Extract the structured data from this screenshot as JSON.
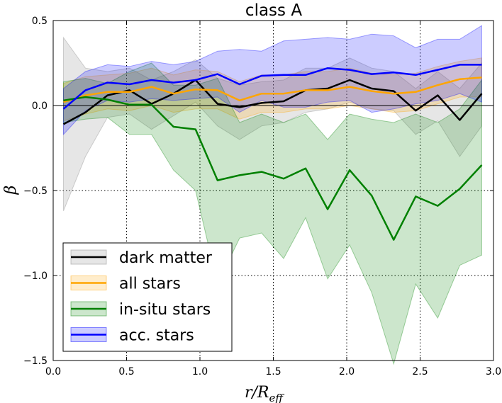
{
  "chart_data": {
    "type": "line",
    "title": "class A",
    "xlabel_main": "r/R",
    "xlabel_sub": "eff",
    "ylabel": "β",
    "xlim": [
      0.0,
      3.0
    ],
    "ylim": [
      -1.5,
      0.5
    ],
    "grid": true,
    "legend_position": "lower-left",
    "x_ticks": [
      0.0,
      0.5,
      1.0,
      1.5,
      2.0,
      2.5,
      3.0
    ],
    "x_tick_labels": [
      "0.0",
      "0.5",
      "1.0",
      "1.5",
      "2.0",
      "2.5",
      "3.0"
    ],
    "y_ticks": [
      0.5,
      0.0,
      -0.5,
      -1.0,
      -1.5
    ],
    "y_tick_labels": [
      "0.5",
      "0.0",
      "−0.5",
      "−1.0",
      "−1.5"
    ],
    "x": [
      0.07,
      0.22,
      0.37,
      0.52,
      0.67,
      0.82,
      0.97,
      1.12,
      1.27,
      1.42,
      1.57,
      1.72,
      1.87,
      2.02,
      2.17,
      2.32,
      2.47,
      2.62,
      2.77,
      2.92
    ],
    "series": [
      {
        "name": "dark matter",
        "color": "#000000",
        "fill": "#808080",
        "values": [
          -0.11,
          -0.04,
          0.06,
          0.09,
          0.01,
          0.07,
          0.15,
          0.01,
          -0.01,
          0.015,
          0.025,
          0.09,
          0.1,
          0.15,
          0.1,
          0.085,
          -0.03,
          0.06,
          -0.085,
          0.07
        ],
        "upper": [
          0.4,
          0.22,
          0.2,
          0.22,
          0.15,
          0.2,
          0.27,
          0.16,
          0.12,
          0.14,
          0.15,
          0.22,
          0.22,
          0.28,
          0.22,
          0.2,
          0.1,
          0.2,
          0.1,
          0.25
        ],
        "lower": [
          -0.62,
          -0.3,
          -0.07,
          -0.05,
          -0.14,
          -0.06,
          0.02,
          -0.12,
          -0.2,
          -0.12,
          -0.1,
          -0.04,
          -0.02,
          0.02,
          -0.02,
          -0.03,
          -0.17,
          -0.09,
          -0.3,
          -0.12
        ]
      },
      {
        "name": "all stars",
        "color": "#ffa500",
        "fill": "#ffa500",
        "values": [
          0.02,
          0.06,
          0.08,
          0.08,
          0.11,
          0.07,
          0.095,
          0.09,
          0.03,
          0.07,
          0.07,
          0.09,
          0.09,
          0.11,
          0.085,
          0.07,
          0.08,
          0.12,
          0.155,
          0.165
        ],
        "upper": [
          0.13,
          0.17,
          0.18,
          0.19,
          0.22,
          0.18,
          0.21,
          0.2,
          0.14,
          0.18,
          0.18,
          0.2,
          0.2,
          0.22,
          0.19,
          0.18,
          0.19,
          0.23,
          0.26,
          0.28
        ],
        "lower": [
          -0.09,
          -0.05,
          -0.02,
          -0.03,
          0.0,
          -0.04,
          -0.02,
          -0.02,
          -0.08,
          -0.04,
          -0.04,
          -0.02,
          -0.02,
          0.0,
          -0.02,
          -0.04,
          -0.03,
          0.01,
          0.05,
          0.05
        ]
      },
      {
        "name": "in-situ stars",
        "color": "#008000",
        "fill": "#008000",
        "values": [
          0.03,
          0.05,
          0.035,
          0.005,
          0.005,
          -0.125,
          -0.14,
          -0.44,
          -0.41,
          -0.39,
          -0.43,
          -0.37,
          -0.61,
          -0.38,
          -0.53,
          -0.79,
          -0.535,
          -0.59,
          -0.49,
          -0.35
        ],
        "upper": [
          0.14,
          0.16,
          0.13,
          0.2,
          0.25,
          0.12,
          0.12,
          0.16,
          -0.1,
          -0.05,
          -0.1,
          -0.05,
          -0.2,
          -0.05,
          -0.08,
          -0.1,
          -0.05,
          -0.1,
          -0.02,
          0.15
        ],
        "lower": [
          -0.1,
          -0.08,
          -0.07,
          -0.17,
          -0.17,
          -0.38,
          -0.5,
          -1.05,
          -0.78,
          -0.75,
          -0.9,
          -0.66,
          -1.02,
          -0.82,
          -1.1,
          -1.52,
          -1.05,
          -1.25,
          -0.94,
          -0.88
        ]
      },
      {
        "name": "acc. stars",
        "color": "#0000ff",
        "fill": "#0000ff",
        "values": [
          -0.02,
          0.09,
          0.135,
          0.125,
          0.15,
          0.135,
          0.15,
          0.185,
          0.125,
          0.175,
          0.18,
          0.18,
          0.22,
          0.21,
          0.185,
          0.195,
          0.18,
          0.21,
          0.24,
          0.24
        ],
        "upper": [
          0.1,
          0.2,
          0.24,
          0.23,
          0.26,
          0.24,
          0.26,
          0.32,
          0.33,
          0.32,
          0.38,
          0.39,
          0.4,
          0.39,
          0.42,
          0.41,
          0.34,
          0.39,
          0.39,
          0.47
        ],
        "lower": [
          -0.17,
          -0.03,
          0.03,
          0.02,
          0.04,
          0.03,
          0.04,
          0.05,
          -0.04,
          0.03,
          -0.01,
          -0.01,
          0.02,
          0.03,
          -0.04,
          -0.02,
          0.01,
          0.03,
          0.07,
          0.02
        ]
      }
    ]
  }
}
